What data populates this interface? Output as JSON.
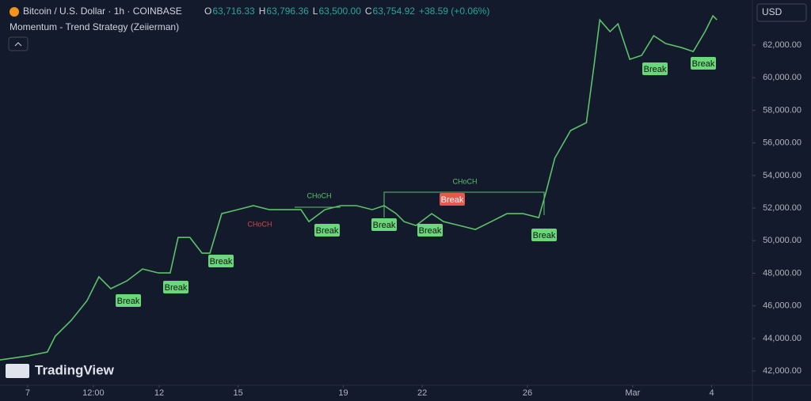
{
  "header": {
    "symbol": "Bitcoin / U.S. Dollar · 1h · COINBASE",
    "ohlc": [
      {
        "label": "O",
        "value": "63,716.33"
      },
      {
        "label": "H",
        "value": "63,796.36"
      },
      {
        "label": "L",
        "value": "63,500.00"
      },
      {
        "label": "C",
        "value": "63,754.92"
      }
    ],
    "change": "+38.59 (+0.06%)",
    "indicator": "Momentum - Trend Strategy (Zeiierman)",
    "currency": "USD",
    "logo": "TradingView"
  },
  "chart_data": {
    "type": "line",
    "color": "#5cc26a",
    "x": [
      5.95,
      7,
      7.75,
      8.05,
      8.66,
      9.26,
      9.71,
      10.16,
      10.77,
      11.37,
      11.97,
      12.42,
      12.72,
      13.17,
      13.63,
      13.93,
      14.38,
      14.98,
      15.58,
      16.19,
      16.79,
      17.39,
      17.69,
      18.3,
      18.9,
      19.5,
      20.1,
      20.55,
      21.01,
      21.31,
      21.76,
      22.36,
      22.81,
      23.42,
      24.02,
      24.62,
      25.22,
      25.83,
      26.43,
      26.73,
      27.04,
      27.64,
      28.24,
      28.54,
      28.75,
      29.14,
      29.44,
      29.89,
      30.34,
      30.8,
      31.25,
      31.86,
      32.3,
      32.75,
      33.05,
      33.2
    ],
    "values": [
      42680,
      42920,
      43170,
      44140,
      45110,
      46320,
      47780,
      47050,
      47530,
      48260,
      48020,
      48020,
      50200,
      50200,
      49230,
      49230,
      51660,
      51900,
      52150,
      51900,
      51900,
      51900,
      51170,
      51900,
      52150,
      52150,
      51900,
      52150,
      51660,
      51170,
      50930,
      51660,
      51170,
      50930,
      50690,
      51170,
      51660,
      51660,
      51410,
      53120,
      55060,
      56760,
      57240,
      60880,
      63550,
      62830,
      63310,
      61130,
      61370,
      62580,
      62100,
      61850,
      61610,
      62830,
      63800,
      63550
    ],
    "xlim": [
      5.95,
      34.55
    ],
    "xticks": [
      7,
      {
        "value": 9.5,
        "label": "12:00"
      },
      12,
      15,
      19,
      22,
      26,
      {
        "value": 30,
        "label": "Mar"
      },
      {
        "value": 33,
        "label": "4"
      }
    ],
    "ylim": [
      41130,
      64770
    ],
    "yticks": [
      {
        "value": 42000,
        "label": "42,000.00"
      },
      {
        "value": 44000,
        "label": "44,000.00"
      },
      {
        "value": 46000,
        "label": "46,000.00"
      },
      {
        "value": 48000,
        "label": "48,000.00"
      },
      {
        "value": 50000,
        "label": "50,000.00"
      },
      {
        "value": 52000,
        "label": "52,000.00"
      },
      {
        "value": 54000,
        "label": "54,000.00"
      },
      {
        "value": 56000,
        "label": "56,000.00"
      },
      {
        "value": 58000,
        "label": "58,000.00"
      },
      {
        "value": 60000,
        "label": "60,000.00"
      },
      {
        "value": 62000,
        "label": "62,000.00"
      }
    ],
    "grid": false,
    "annotations": [
      "Break",
      "Break",
      "Break",
      "Break",
      "Break",
      "Break",
      "Break",
      "Break",
      "Break",
      "Break",
      "CHoCH",
      "CHoCH",
      "CHoCH"
    ]
  }
}
